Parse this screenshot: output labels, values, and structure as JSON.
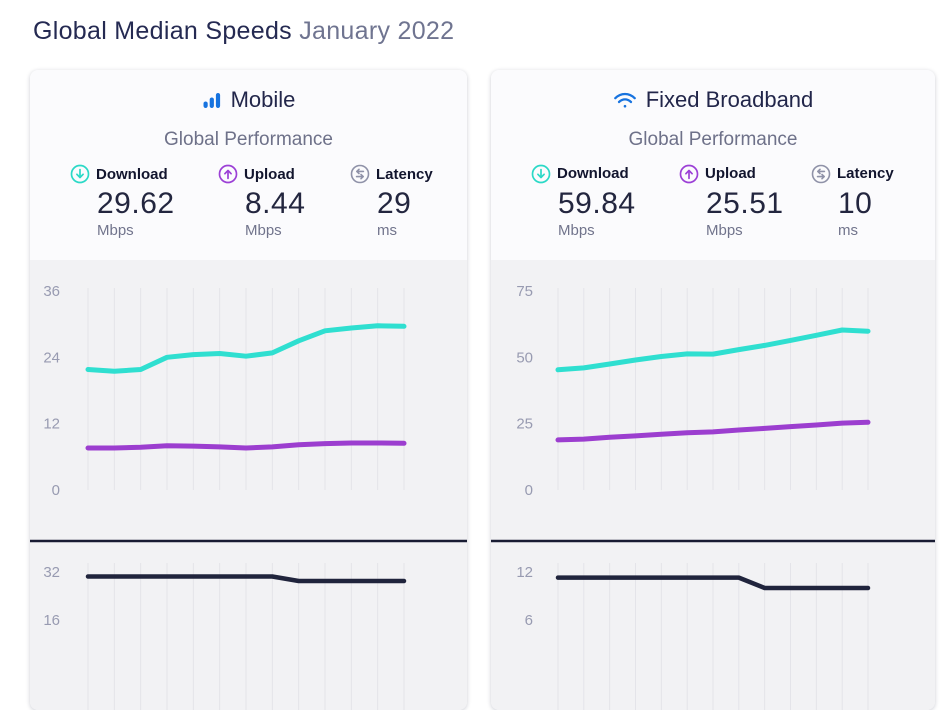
{
  "page_title": {
    "main": "Global Median Speeds",
    "date": "January 2022"
  },
  "colors": {
    "download_teal": "#2fdfd0",
    "upload_purple": "#9c3ecf",
    "latency_navy": "#20243c",
    "brand_blue": "#1773df",
    "chart_bg": "#f2f2f4",
    "gridline": "#e4e4e9",
    "tick_label": "#989bb1",
    "heading_navy": "#22264a",
    "muted_gray": "#6e7189"
  },
  "cards": [
    {
      "title": "Mobile",
      "icon": "mobile-bars-icon",
      "subtitle": "Global Performance",
      "stats": [
        {
          "icon": "download-arrow-icon",
          "label": "Download",
          "value": "29.62",
          "unit": "Mbps"
        },
        {
          "icon": "upload-arrow-icon",
          "label": "Upload",
          "value": "8.44",
          "unit": "Mbps"
        },
        {
          "icon": "latency-swap-icon",
          "label": "Latency",
          "value": "29",
          "unit": "ms"
        }
      ]
    },
    {
      "title": "Fixed Broadband",
      "icon": "wifi-icon",
      "subtitle": "Global Performance",
      "stats": [
        {
          "icon": "download-arrow-icon",
          "label": "Download",
          "value": "59.84",
          "unit": "Mbps"
        },
        {
          "icon": "upload-arrow-icon",
          "label": "Upload",
          "value": "25.51",
          "unit": "Mbps"
        },
        {
          "icon": "latency-swap-icon",
          "label": "Latency",
          "value": "10",
          "unit": "ms"
        }
      ]
    }
  ],
  "chart_data": [
    {
      "type": "line",
      "title": "Mobile speeds trend (13 monthly points ending January 2022)",
      "x_labels_visible": false,
      "points": 13,
      "ylim": [
        0,
        36
      ],
      "yticks": [
        0,
        12,
        24,
        36
      ],
      "grid": "vertical-only",
      "legend": "none",
      "series": [
        {
          "name": "Download (Mbps)",
          "color": "#2fdfd0",
          "values": [
            21.8,
            21.5,
            21.8,
            24.0,
            24.5,
            24.7,
            24.2,
            24.8,
            27.0,
            28.8,
            29.3,
            29.7,
            29.62
          ]
        },
        {
          "name": "Upload (Mbps)",
          "color": "#9c3ecf",
          "values": [
            7.6,
            7.6,
            7.75,
            8.0,
            7.95,
            7.8,
            7.6,
            7.8,
            8.2,
            8.4,
            8.5,
            8.5,
            8.44
          ]
        }
      ]
    },
    {
      "type": "line",
      "title": "Mobile latency trend (ms)",
      "x_labels_visible": false,
      "points": 13,
      "yticks_visible": [
        32,
        16
      ],
      "grid": "vertical-only",
      "series": [
        {
          "name": "Latency (ms)",
          "color": "#20243c",
          "values": [
            30.5,
            30.5,
            30.5,
            30.5,
            30.5,
            30.5,
            30.5,
            30.5,
            29,
            29,
            29,
            29,
            29
          ]
        }
      ]
    },
    {
      "type": "line",
      "title": "Fixed Broadband speeds trend (13 monthly points ending January 2022)",
      "x_labels_visible": false,
      "points": 13,
      "ylim": [
        0,
        75
      ],
      "yticks": [
        0,
        25,
        50,
        75
      ],
      "grid": "vertical-only",
      "legend": "none",
      "series": [
        {
          "name": "Download (Mbps)",
          "color": "#2fdfd0",
          "values": [
            45.3,
            46.0,
            47.5,
            49.0,
            50.3,
            51.3,
            51.2,
            52.9,
            54.5,
            56.4,
            58.3,
            60.3,
            59.84
          ]
        },
        {
          "name": "Upload (Mbps)",
          "color": "#9c3ecf",
          "values": [
            18.9,
            19.2,
            19.9,
            20.4,
            21.0,
            21.6,
            21.9,
            22.6,
            23.2,
            23.9,
            24.5,
            25.2,
            25.51
          ]
        }
      ]
    },
    {
      "type": "line",
      "title": "Fixed Broadband latency trend (ms)",
      "x_labels_visible": false,
      "points": 13,
      "yticks_visible": [
        12,
        6
      ],
      "grid": "vertical-only",
      "series": [
        {
          "name": "Latency (ms)",
          "color": "#20243c",
          "values": [
            11.3,
            11.3,
            11.3,
            11.3,
            11.3,
            11.3,
            11.3,
            11.3,
            10,
            10,
            10,
            10,
            10
          ]
        }
      ]
    }
  ]
}
